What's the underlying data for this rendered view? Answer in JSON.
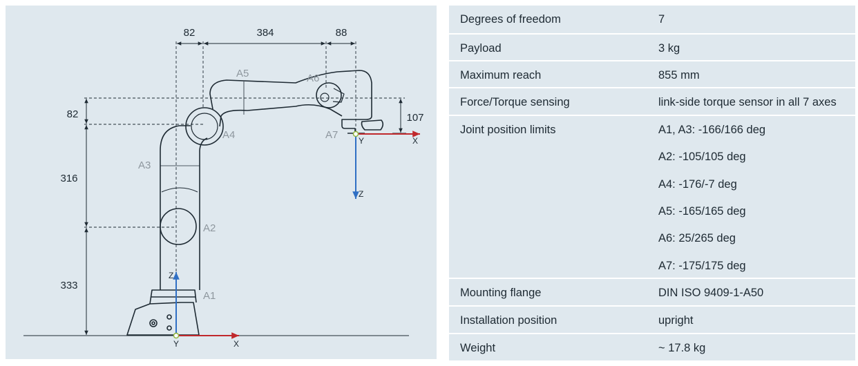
{
  "diagram": {
    "dimensions": {
      "top_left": "82",
      "top_mid": "384",
      "top_right": "88",
      "left_upper": "82",
      "left_mid": "316",
      "left_lower": "333",
      "right": "107"
    },
    "joints": {
      "a1": "A1",
      "a2": "A2",
      "a3": "A3",
      "a4": "A4",
      "a5": "A5",
      "a6": "A6",
      "a7": "A7"
    },
    "axes": {
      "base_x": "X",
      "base_y": "Y",
      "base_z": "Z",
      "flange_x": "X",
      "flange_y": "Y",
      "flange_z": "Z"
    },
    "colors": {
      "x_axis": "#c0282c",
      "z_axis": "#2f6fc4",
      "robot_outline": "#1e2a33",
      "dimension_line": "#1e2a33",
      "joint_label": "#8e979e"
    }
  },
  "specs": {
    "rows": [
      {
        "label": "Degrees of freedom",
        "values": [
          "7"
        ]
      },
      {
        "label": "Payload",
        "values": [
          "3 kg"
        ]
      },
      {
        "label": "Maximum reach",
        "values": [
          "855 mm"
        ]
      },
      {
        "label": "Force/Torque sensing",
        "values": [
          "link-side torque sensor in all 7 axes"
        ]
      },
      {
        "label": "Joint position limits",
        "values": [
          "A1, A3: -166/166 deg",
          "A2: -105/105 deg",
          "A4: -176/-7 deg",
          "A5: -165/165 deg",
          "A6: 25/265 deg",
          "A7: -175/175 deg"
        ]
      },
      {
        "label": "Mounting flange",
        "values": [
          "DIN ISO 9409-1-A50"
        ]
      },
      {
        "label": "Installation position",
        "values": [
          "upright"
        ]
      },
      {
        "label": "Weight",
        "values": [
          "~ 17.8 kg"
        ]
      }
    ]
  }
}
